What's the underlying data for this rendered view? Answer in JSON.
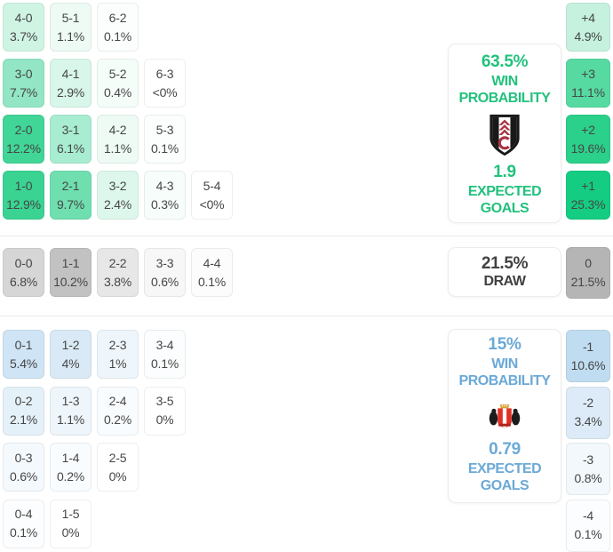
{
  "colors": {
    "green_text": "#22c17d",
    "blue_text": "#6ba9d6",
    "dark_text": "#414141",
    "cell_text": "#464646",
    "separator": "#e9e9e9"
  },
  "panels": {
    "home": {
      "win_probability": "63.5%",
      "win_label_1": "WIN",
      "win_label_2": "PROBABILITY",
      "expected_goals": "1.9",
      "xg_label_1": "EXPECTED",
      "xg_label_2": "GOALS",
      "badge_icon": "fulham-crest-icon"
    },
    "draw": {
      "probability": "21.5%",
      "label": "DRAW"
    },
    "away": {
      "win_probability": "15%",
      "win_label_1": "WIN",
      "win_label_2": "PROBABILITY",
      "expected_goals": "0.79",
      "xg_label_1": "EXPECTED",
      "xg_label_2": "GOALS",
      "badge_icon": "sunderland-crest-icon"
    }
  },
  "chart_data": {
    "type": "heatmap",
    "summary": {
      "home_win_probability_pct": 63.5,
      "draw_probability_pct": 21.5,
      "away_win_probability_pct": 15,
      "home_expected_goals": 1.9,
      "away_expected_goals": 0.79
    },
    "home_win_scorelines": [
      {
        "score": "4-0",
        "pct": "3.7%",
        "color": "#d0f4e4"
      },
      {
        "score": "5-1",
        "pct": "1.1%",
        "color": "#edfbf4"
      },
      {
        "score": "6-2",
        "pct": "0.1%",
        "color": "#fbfefd"
      },
      {
        "score": "3-0",
        "pct": "7.7%",
        "color": "#93e6c5"
      },
      {
        "score": "4-1",
        "pct": "2.9%",
        "color": "#d8f6e9"
      },
      {
        "score": "5-2",
        "pct": "0.4%",
        "color": "#f5fdf9"
      },
      {
        "score": "6-3",
        "pct": "<0%",
        "color": "#ffffff"
      },
      {
        "score": "2-0",
        "pct": "12.2%",
        "color": "#41d597"
      },
      {
        "score": "3-1",
        "pct": "6.1%",
        "color": "#a8ecd1"
      },
      {
        "score": "4-2",
        "pct": "1.1%",
        "color": "#edfbf4"
      },
      {
        "score": "5-3",
        "pct": "0.1%",
        "color": "#fbfefd"
      },
      {
        "score": "1-0",
        "pct": "12.9%",
        "color": "#3ad392"
      },
      {
        "score": "2-1",
        "pct": "9.7%",
        "color": "#6fdfb0"
      },
      {
        "score": "3-2",
        "pct": "2.4%",
        "color": "#def7ec"
      },
      {
        "score": "4-3",
        "pct": "0.3%",
        "color": "#f7fdfa"
      },
      {
        "score": "5-4",
        "pct": "<0%",
        "color": "#ffffff"
      }
    ],
    "draw_scorelines": [
      {
        "score": "0-0",
        "pct": "6.8%",
        "color": "#d6d6d6"
      },
      {
        "score": "1-1",
        "pct": "10.2%",
        "color": "#c2c2c2"
      },
      {
        "score": "2-2",
        "pct": "3.8%",
        "color": "#e7e7e7"
      },
      {
        "score": "3-3",
        "pct": "0.6%",
        "color": "#f7f7f7"
      },
      {
        "score": "4-4",
        "pct": "0.1%",
        "color": "#fcfcfc"
      }
    ],
    "away_win_scorelines": [
      {
        "score": "0-1",
        "pct": "5.4%",
        "color": "#cfe4f4"
      },
      {
        "score": "1-2",
        "pct": "4%",
        "color": "#d9eaf6"
      },
      {
        "score": "2-3",
        "pct": "1%",
        "color": "#eff6fb"
      },
      {
        "score": "3-4",
        "pct": "0.1%",
        "color": "#fcfdfe"
      },
      {
        "score": "0-2",
        "pct": "2.1%",
        "color": "#e5f1f9"
      },
      {
        "score": "1-3",
        "pct": "1.1%",
        "color": "#eef5fb"
      },
      {
        "score": "2-4",
        "pct": "0.2%",
        "color": "#f9fcfe"
      },
      {
        "score": "3-5",
        "pct": "0%",
        "color": "#ffffff"
      },
      {
        "score": "0-3",
        "pct": "0.6%",
        "color": "#f4f9fd"
      },
      {
        "score": "1-4",
        "pct": "0.2%",
        "color": "#f9fcfe"
      },
      {
        "score": "2-5",
        "pct": "0%",
        "color": "#ffffff"
      },
      {
        "score": "0-4",
        "pct": "0.1%",
        "color": "#fcfdfe"
      },
      {
        "score": "1-5",
        "pct": "0%",
        "color": "#ffffff"
      }
    ],
    "goal_difference": [
      {
        "gd": "+4",
        "pct": "4.9%",
        "color": "#c5f1de"
      },
      {
        "gd": "+3",
        "pct": "11.1%",
        "color": "#56daa2"
      },
      {
        "gd": "+2",
        "pct": "19.6%",
        "color": "#2bd08a"
      },
      {
        "gd": "+1",
        "pct": "25.3%",
        "color": "#14cd82"
      },
      {
        "gd": "0",
        "pct": "21.5%",
        "color": "#b5b5b5"
      },
      {
        "gd": "-1",
        "pct": "10.6%",
        "color": "#c0dcf0"
      },
      {
        "gd": "-2",
        "pct": "3.4%",
        "color": "#dcebf7"
      },
      {
        "gd": "-3",
        "pct": "0.8%",
        "color": "#f2f8fc"
      },
      {
        "gd": "-4",
        "pct": "0.1%",
        "color": "#fcfdfe"
      }
    ]
  }
}
